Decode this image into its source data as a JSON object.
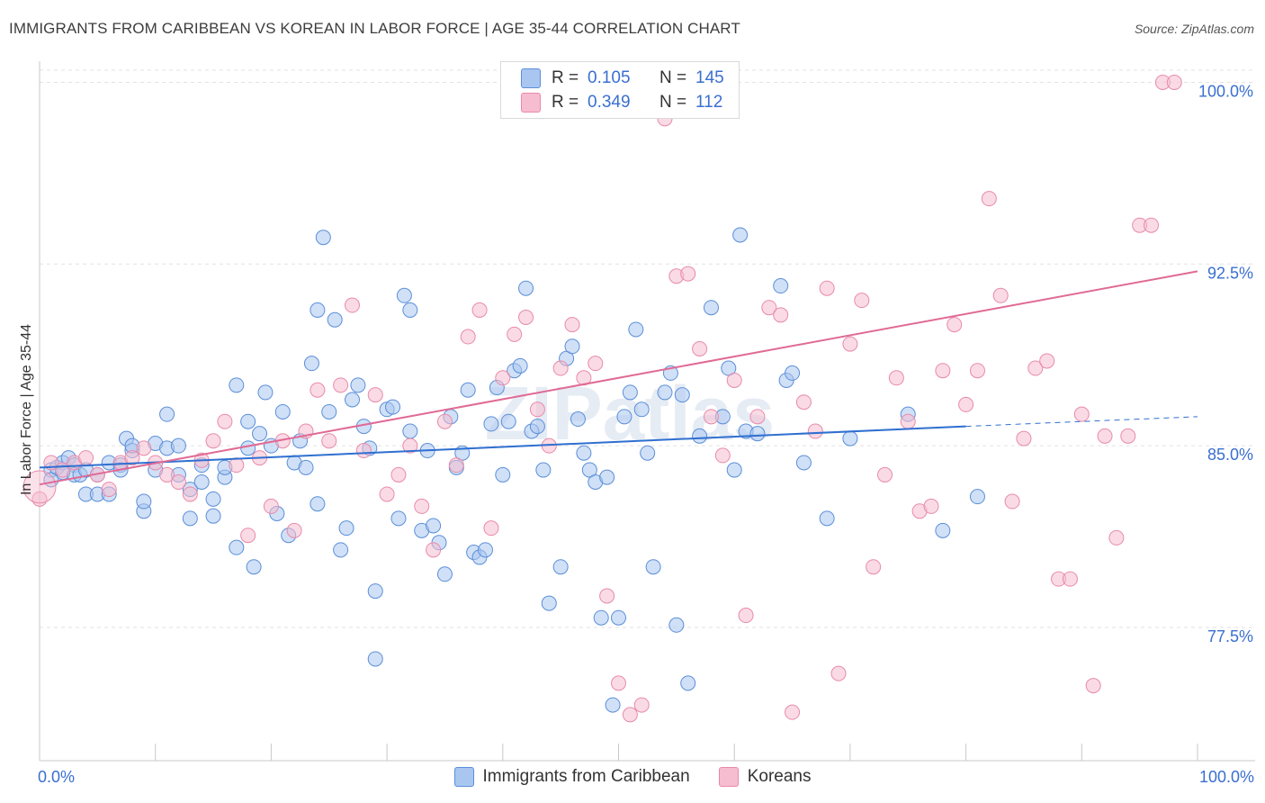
{
  "header": {
    "title": "IMMIGRANTS FROM CARIBBEAN VS KOREAN IN LABOR FORCE | AGE 35-44 CORRELATION CHART",
    "source": "Source: ZipAtlas.com"
  },
  "watermark": "ZIPatlas",
  "chart_data": {
    "type": "scatter",
    "title": "IMMIGRANTS FROM CARIBBEAN VS KOREAN IN LABOR FORCE | AGE 35-44 CORRELATION CHART",
    "xlabel": "",
    "ylabel": "In Labor Force | Age 35-44",
    "xlim": [
      0,
      100
    ],
    "ylim": [
      72.0,
      100.5
    ],
    "x_tick_labels": [
      "0.0%",
      "100.0%"
    ],
    "y_ticks": [
      77.5,
      85.0,
      92.5,
      100.0
    ],
    "y_tick_labels": [
      "77.5%",
      "85.0%",
      "92.5%",
      "100.0%"
    ],
    "grid": true,
    "legend_position": "top-center",
    "colors": {
      "caribbean_fill": "#a9c6f0",
      "caribbean_stroke": "#5b8fd8",
      "caribbean_line": "#2f6fd0",
      "korean_fill": "#f6bdd0",
      "korean_stroke": "#e88aaa",
      "korean_line": "#e06a95",
      "tick_label": "#3a6fd1"
    },
    "stats": [
      {
        "r_label": "R =",
        "r": "0.105",
        "n_label": "N =",
        "n": "145"
      },
      {
        "r_label": "R =",
        "r": "0.349",
        "n_label": "N =",
        "n": "112"
      }
    ],
    "series": [
      {
        "name": "Immigrants from Caribbean",
        "trend": {
          "x": [
            0,
            80
          ],
          "y": [
            84.1,
            85.8
          ],
          "dashed_to": [
            100,
            86.2
          ]
        },
        "points": [
          [
            1,
            84.0
          ],
          [
            1,
            83.6
          ],
          [
            1.5,
            84.1
          ],
          [
            2,
            84.3
          ],
          [
            2,
            83.9
          ],
          [
            2.5,
            84.5
          ],
          [
            3,
            84.2
          ],
          [
            3,
            83.8
          ],
          [
            3.5,
            83.8
          ],
          [
            4,
            83.0
          ],
          [
            4,
            84.0
          ],
          [
            5,
            83.8
          ],
          [
            5,
            83.0
          ],
          [
            6,
            83.0
          ],
          [
            6,
            84.3
          ],
          [
            7,
            84.2
          ],
          [
            7,
            84.0
          ],
          [
            7.5,
            85.3
          ],
          [
            8,
            84.8
          ],
          [
            8,
            85.0
          ],
          [
            9,
            82.3
          ],
          [
            9,
            82.7
          ],
          [
            10,
            85.1
          ],
          [
            10,
            84.0
          ],
          [
            11,
            84.9
          ],
          [
            11,
            86.3
          ],
          [
            12,
            85.0
          ],
          [
            12,
            83.8
          ],
          [
            13,
            83.2
          ],
          [
            13,
            82.0
          ],
          [
            14,
            84.2
          ],
          [
            14,
            83.5
          ],
          [
            15,
            82.1
          ],
          [
            15,
            82.8
          ],
          [
            16,
            83.7
          ],
          [
            16,
            84.1
          ],
          [
            17,
            87.5
          ],
          [
            17,
            80.8
          ],
          [
            18,
            86.0
          ],
          [
            18,
            84.9
          ],
          [
            18.5,
            80.0
          ],
          [
            19,
            85.5
          ],
          [
            19.5,
            87.2
          ],
          [
            20,
            85.0
          ],
          [
            20.5,
            82.2
          ],
          [
            21,
            86.4
          ],
          [
            21.5,
            81.3
          ],
          [
            22,
            84.3
          ],
          [
            22.5,
            85.2
          ],
          [
            23,
            84.1
          ],
          [
            23.5,
            88.4
          ],
          [
            24,
            90.6
          ],
          [
            24,
            82.6
          ],
          [
            24.5,
            93.6
          ],
          [
            25,
            86.4
          ],
          [
            25.5,
            90.2
          ],
          [
            26,
            80.7
          ],
          [
            26.5,
            81.6
          ],
          [
            27,
            86.9
          ],
          [
            27.5,
            87.5
          ],
          [
            28,
            85.8
          ],
          [
            28.5,
            84.9
          ],
          [
            29,
            79.0
          ],
          [
            29,
            76.2
          ],
          [
            30,
            86.5
          ],
          [
            30.5,
            86.6
          ],
          [
            31,
            82.0
          ],
          [
            31.5,
            91.2
          ],
          [
            32,
            85.6
          ],
          [
            32,
            90.6
          ],
          [
            33,
            81.5
          ],
          [
            33.5,
            84.8
          ],
          [
            34,
            81.7
          ],
          [
            34.5,
            81.0
          ],
          [
            35,
            79.7
          ],
          [
            35.5,
            86.2
          ],
          [
            36,
            84.1
          ],
          [
            36.5,
            84.7
          ],
          [
            37,
            87.3
          ],
          [
            37.5,
            80.6
          ],
          [
            38,
            80.4
          ],
          [
            38.5,
            80.7
          ],
          [
            39,
            85.9
          ],
          [
            39.5,
            87.4
          ],
          [
            40,
            83.8
          ],
          [
            40.5,
            86.0
          ],
          [
            41,
            88.1
          ],
          [
            41.5,
            88.3
          ],
          [
            42,
            91.5
          ],
          [
            42.5,
            85.6
          ],
          [
            43,
            85.8
          ],
          [
            43.5,
            84.0
          ],
          [
            44,
            78.5
          ],
          [
            45,
            80.0
          ],
          [
            45.5,
            88.6
          ],
          [
            46,
            89.1
          ],
          [
            46.5,
            86.1
          ],
          [
            47,
            84.7
          ],
          [
            47.5,
            84.0
          ],
          [
            48,
            83.5
          ],
          [
            48.5,
            77.9
          ],
          [
            49,
            83.7
          ],
          [
            49.5,
            74.3
          ],
          [
            50,
            77.9
          ],
          [
            50.5,
            86.2
          ],
          [
            51,
            87.2
          ],
          [
            51.5,
            89.8
          ],
          [
            52,
            86.5
          ],
          [
            52.5,
            84.7
          ],
          [
            53,
            80.0
          ],
          [
            54,
            87.2
          ],
          [
            54.5,
            88.0
          ],
          [
            55,
            77.6
          ],
          [
            55.5,
            87.1
          ],
          [
            56,
            75.2
          ],
          [
            57,
            85.4
          ],
          [
            58,
            90.7
          ],
          [
            59,
            86.2
          ],
          [
            59.5,
            88.2
          ],
          [
            60,
            84.0
          ],
          [
            60.5,
            93.7
          ],
          [
            61,
            85.6
          ],
          [
            62,
            85.5
          ],
          [
            64,
            91.6
          ],
          [
            64.5,
            87.7
          ],
          [
            65,
            88.0
          ],
          [
            66,
            84.3
          ],
          [
            68,
            82.0
          ],
          [
            70,
            85.3
          ],
          [
            75,
            86.3
          ],
          [
            78,
            81.5
          ],
          [
            81,
            82.9
          ]
        ]
      },
      {
        "name": "Koreans",
        "trend": {
          "x": [
            0,
            100
          ],
          "y": [
            83.4,
            92.2
          ]
        },
        "points": [
          [
            0,
            82.8
          ],
          [
            1,
            84.3
          ],
          [
            2,
            84.0
          ],
          [
            3,
            84.3
          ],
          [
            4,
            84.5
          ],
          [
            5,
            83.8
          ],
          [
            6,
            83.2
          ],
          [
            7,
            84.3
          ],
          [
            8,
            84.5
          ],
          [
            9,
            84.9
          ],
          [
            10,
            84.3
          ],
          [
            11,
            83.8
          ],
          [
            12,
            83.5
          ],
          [
            13,
            83.0
          ],
          [
            14,
            84.4
          ],
          [
            15,
            85.2
          ],
          [
            16,
            86.0
          ],
          [
            17,
            84.2
          ],
          [
            18,
            81.3
          ],
          [
            19,
            84.5
          ],
          [
            20,
            82.5
          ],
          [
            21,
            85.2
          ],
          [
            22,
            81.5
          ],
          [
            23,
            85.6
          ],
          [
            24,
            87.3
          ],
          [
            25,
            85.2
          ],
          [
            26,
            87.5
          ],
          [
            27,
            90.8
          ],
          [
            28,
            84.8
          ],
          [
            29,
            87.1
          ],
          [
            30,
            83.0
          ],
          [
            31,
            83.8
          ],
          [
            32,
            85.0
          ],
          [
            33,
            82.5
          ],
          [
            34,
            80.7
          ],
          [
            35,
            86.0
          ],
          [
            36,
            84.2
          ],
          [
            37,
            89.5
          ],
          [
            38,
            90.6
          ],
          [
            39,
            81.6
          ],
          [
            40,
            87.8
          ],
          [
            41,
            89.6
          ],
          [
            42,
            90.3
          ],
          [
            43,
            86.5
          ],
          [
            44,
            85.0
          ],
          [
            45,
            88.2
          ],
          [
            46,
            90.0
          ],
          [
            47,
            87.8
          ],
          [
            48,
            88.4
          ],
          [
            49,
            78.8
          ],
          [
            50,
            75.2
          ],
          [
            51,
            73.9
          ],
          [
            52,
            74.3
          ],
          [
            53,
            100.0
          ],
          [
            54,
            98.5
          ],
          [
            55,
            92.0
          ],
          [
            56,
            92.1
          ],
          [
            57,
            89.0
          ],
          [
            58,
            86.2
          ],
          [
            59,
            84.6
          ],
          [
            60,
            87.7
          ],
          [
            61,
            78.0
          ],
          [
            62,
            86.2
          ],
          [
            63,
            90.7
          ],
          [
            64,
            90.4
          ],
          [
            65,
            74.0
          ],
          [
            66,
            86.8
          ],
          [
            67,
            85.6
          ],
          [
            68,
            91.5
          ],
          [
            69,
            75.6
          ],
          [
            70,
            89.2
          ],
          [
            71,
            91.0
          ],
          [
            72,
            80.0
          ],
          [
            73,
            83.8
          ],
          [
            74,
            87.8
          ],
          [
            75,
            86.0
          ],
          [
            76,
            82.3
          ],
          [
            77,
            82.5
          ],
          [
            78,
            88.1
          ],
          [
            79,
            90.0
          ],
          [
            80,
            86.7
          ],
          [
            81,
            88.1
          ],
          [
            82,
            95.2
          ],
          [
            83,
            91.2
          ],
          [
            84,
            82.7
          ],
          [
            85,
            85.3
          ],
          [
            86,
            88.2
          ],
          [
            87,
            88.5
          ],
          [
            88,
            79.5
          ],
          [
            89,
            79.5
          ],
          [
            90,
            86.3
          ],
          [
            91,
            75.1
          ],
          [
            92,
            85.4
          ],
          [
            93,
            81.2
          ],
          [
            94,
            85.4
          ],
          [
            95,
            94.1
          ],
          [
            96,
            94.1
          ],
          [
            97,
            100.0
          ],
          [
            98,
            100.0
          ]
        ]
      }
    ]
  },
  "legend_bottom": {
    "items": [
      "Immigrants from Caribbean",
      "Koreans"
    ]
  }
}
